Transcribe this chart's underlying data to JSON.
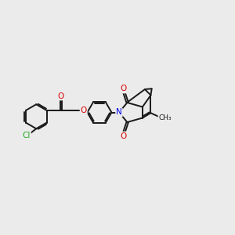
{
  "bg_color": "#ebebeb",
  "bond_color": "#1a1a1a",
  "cl_color": "#22aa22",
  "o_color": "#dd0000",
  "n_color": "#0000ee",
  "lw": 1.4,
  "figsize": [
    3.0,
    3.0
  ],
  "dpi": 100,
  "xlim": [
    0,
    12
  ],
  "ylim": [
    0,
    10
  ]
}
